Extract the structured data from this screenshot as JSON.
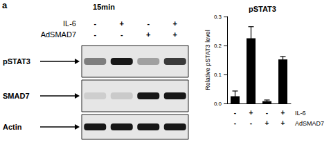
{
  "panel_label": "a",
  "blot": {
    "title": "15min",
    "treatments": [
      {
        "label": "IL-6",
        "signs": [
          "-",
          "+",
          "-",
          "+"
        ]
      },
      {
        "label": "AdSMAD7",
        "signs": [
          "-",
          "-",
          "+",
          "+"
        ]
      }
    ],
    "rows": [
      {
        "label": "pSTAT3",
        "band_intensity": [
          0.45,
          0.9,
          0.3,
          0.75
        ]
      },
      {
        "label": "SMAD7",
        "band_intensity": [
          0.1,
          0.12,
          0.9,
          0.9
        ]
      },
      {
        "label": "Actin",
        "band_intensity": [
          0.9,
          0.9,
          0.9,
          0.9
        ]
      }
    ]
  },
  "chart_data": {
    "type": "bar",
    "title": "pSTAT3",
    "y_label": "Relative pSTAT3 level",
    "categories": [
      null,
      null,
      null,
      null
    ],
    "values": [
      0.025,
      0.225,
      0.008,
      0.152
    ],
    "error": [
      0.018,
      0.04,
      0.004,
      0.01
    ],
    "color": "#000000",
    "ylim": [
      0,
      0.3
    ],
    "yticks": [
      {
        "value": 0,
        "label": "0.0"
      },
      0.1,
      0.2,
      0.3
    ],
    "grid": false,
    "treatments": [
      {
        "label": "IL-6",
        "signs": [
          "-",
          "+",
          "-",
          "+"
        ]
      },
      {
        "label": "AdSMAD7",
        "signs": [
          "-",
          "-",
          "+",
          "+"
        ]
      }
    ]
  }
}
